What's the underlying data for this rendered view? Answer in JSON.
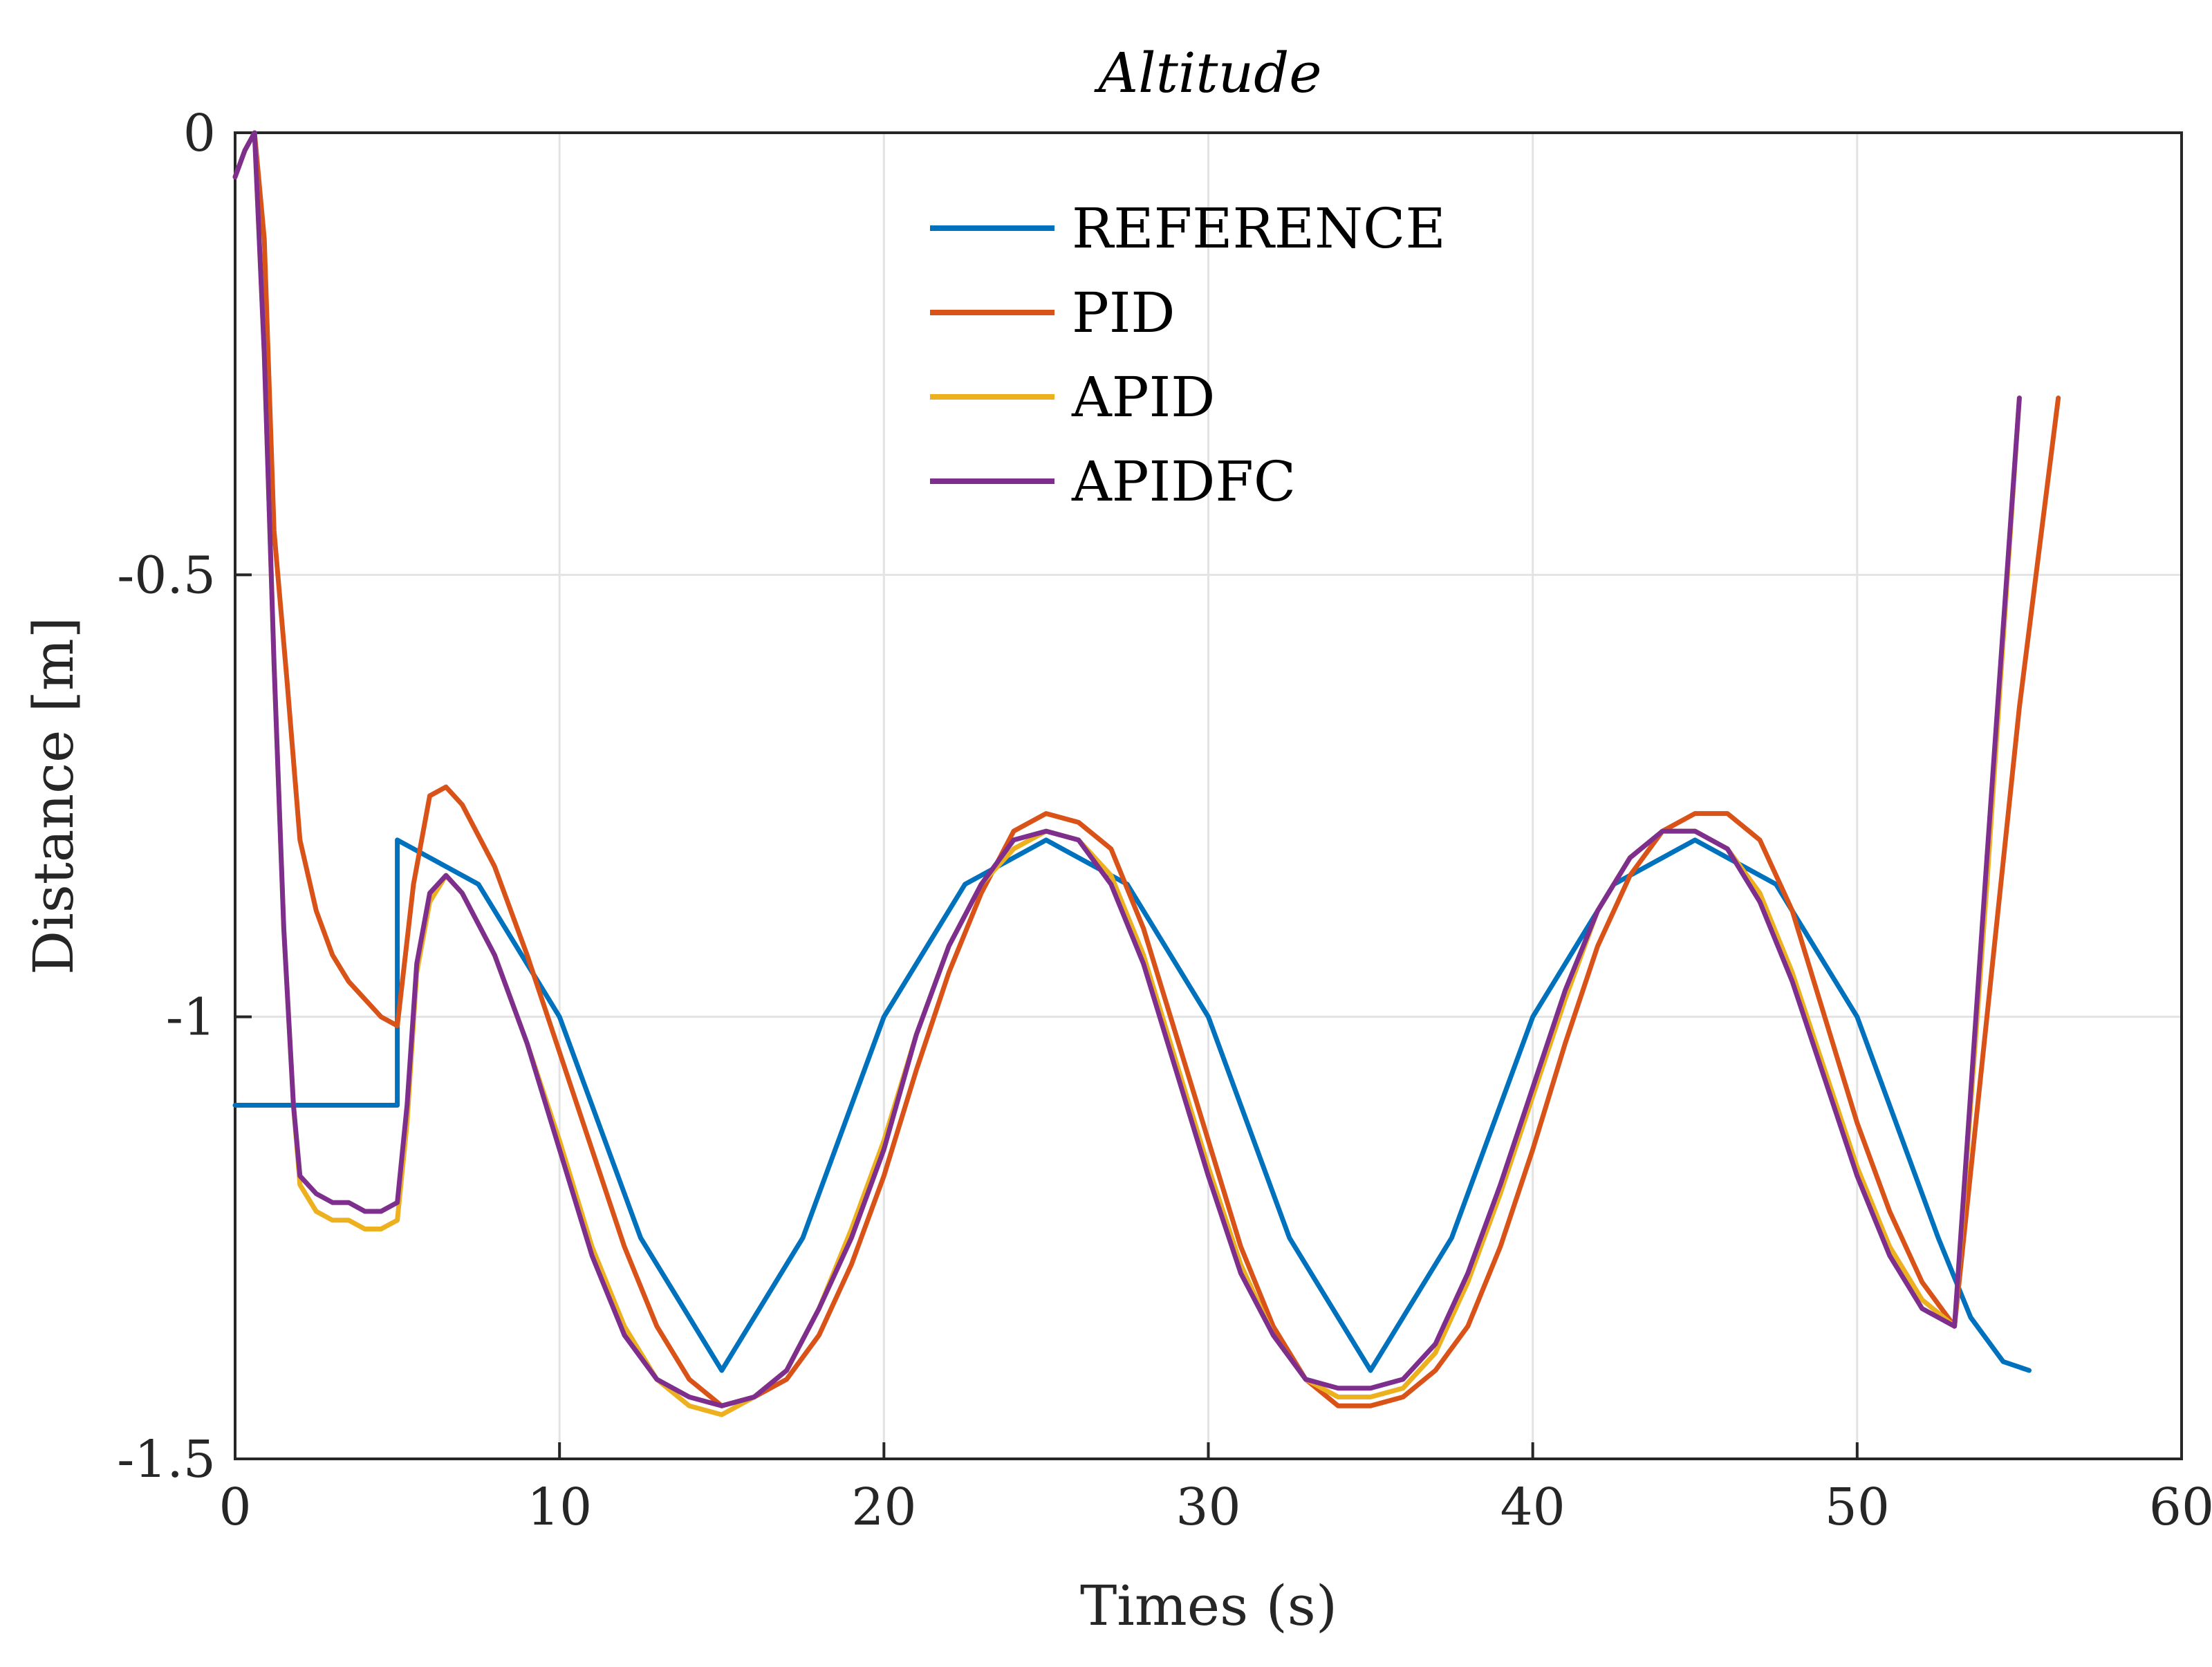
{
  "chart_data": {
    "type": "line",
    "title": "Altitude",
    "xlabel": "Times (s)",
    "ylabel": "Distance [m]",
    "xlim": [
      0,
      60
    ],
    "ylim": [
      -1.5,
      0
    ],
    "x_ticks": [
      0,
      10,
      20,
      30,
      40,
      50,
      60
    ],
    "x_tick_labels": [
      "0",
      "10",
      "20",
      "30",
      "40",
      "50",
      "60"
    ],
    "y_ticks": [
      0,
      -0.5,
      -1,
      -1.5
    ],
    "y_tick_labels": [
      "0",
      "-0.5",
      "-1",
      "-1.5"
    ],
    "grid": true,
    "legend_position": "top-center",
    "series": [
      {
        "name": "REFERENCE",
        "color": "#0072bd",
        "x": [
          0,
          5,
          5,
          7.5,
          10,
          12.5,
          15,
          17.5,
          20,
          22.5,
          25,
          27.5,
          30,
          32.5,
          35,
          37.5,
          40,
          42.5,
          45,
          47.5,
          50,
          52.5,
          53.5,
          54.5,
          55.3
        ],
        "y": [
          -1.1,
          -1.1,
          -0.8,
          -0.85,
          -1.0,
          -1.25,
          -1.4,
          -1.25,
          -1.0,
          -0.85,
          -0.8,
          -0.85,
          -1.0,
          -1.25,
          -1.4,
          -1.25,
          -1.0,
          -0.85,
          -0.8,
          -0.85,
          -1.0,
          -1.25,
          -1.34,
          -1.39,
          -1.4
        ]
      },
      {
        "name": "PID",
        "color": "#d95319",
        "x": [
          0,
          0.3,
          0.6,
          0.9,
          1.2,
          1.6,
          2.0,
          2.5,
          3.0,
          3.5,
          4.0,
          4.5,
          5.0,
          5.5,
          6.0,
          6.5,
          7.0,
          8.0,
          9.0,
          10.0,
          11.0,
          12.0,
          13.0,
          14.0,
          15.0,
          16.0,
          17.0,
          18.0,
          19.0,
          20.0,
          21.0,
          22.0,
          23.0,
          24.0,
          25.0,
          26.0,
          27.0,
          28.0,
          29.0,
          30.0,
          31.0,
          32.0,
          33.0,
          34.0,
          35.0,
          36.0,
          37.0,
          38.0,
          39.0,
          40.0,
          41.0,
          42.0,
          43.0,
          44.0,
          45.0,
          46.0,
          47.0,
          48.0,
          49.0,
          50.0,
          51.0,
          52.0,
          53.0,
          54.0,
          55.0,
          56.2
        ],
        "y": [
          -0.05,
          -0.02,
          0.0,
          -0.12,
          -0.45,
          -0.62,
          -0.8,
          -0.88,
          -0.93,
          -0.96,
          -0.98,
          -1.0,
          -1.01,
          -0.85,
          -0.75,
          -0.74,
          -0.76,
          -0.83,
          -0.93,
          -1.04,
          -1.15,
          -1.26,
          -1.35,
          -1.41,
          -1.44,
          -1.43,
          -1.41,
          -1.36,
          -1.28,
          -1.18,
          -1.06,
          -0.95,
          -0.86,
          -0.79,
          -0.77,
          -0.78,
          -0.81,
          -0.9,
          -1.02,
          -1.14,
          -1.26,
          -1.35,
          -1.41,
          -1.44,
          -1.44,
          -1.43,
          -1.4,
          -1.35,
          -1.26,
          -1.15,
          -1.03,
          -0.92,
          -0.84,
          -0.79,
          -0.77,
          -0.77,
          -0.8,
          -0.88,
          -1.0,
          -1.12,
          -1.22,
          -1.3,
          -1.35,
          -1.0,
          -0.65,
          -0.3
        ]
      },
      {
        "name": "APID",
        "color": "#edb120",
        "x": [
          0,
          0.3,
          0.6,
          0.9,
          1.2,
          1.5,
          1.8,
          2.0,
          2.5,
          3.0,
          3.5,
          4.0,
          4.5,
          5.0,
          5.3,
          5.6,
          6.0,
          6.5,
          7.0,
          8.0,
          9.0,
          10.0,
          11.0,
          12.0,
          13.0,
          14.0,
          15.0,
          16.0,
          17.0,
          18.0,
          19.0,
          20.0,
          21.0,
          22.0,
          23.0,
          24.0,
          25.0,
          26.0,
          27.0,
          28.0,
          29.0,
          30.0,
          31.0,
          32.0,
          33.0,
          34.0,
          35.0,
          36.0,
          37.0,
          38.0,
          39.0,
          40.0,
          41.0,
          42.0,
          43.0,
          44.0,
          45.0,
          46.0,
          47.0,
          48.0,
          49.0,
          50.0,
          51.0,
          52.0,
          53.0,
          54.0,
          55.0
        ],
        "y": [
          -0.05,
          -0.02,
          0.0,
          -0.25,
          -0.6,
          -0.9,
          -1.1,
          -1.19,
          -1.22,
          -1.23,
          -1.23,
          -1.24,
          -1.24,
          -1.23,
          -1.12,
          -0.95,
          -0.87,
          -0.84,
          -0.86,
          -0.93,
          -1.03,
          -1.14,
          -1.26,
          -1.35,
          -1.41,
          -1.44,
          -1.45,
          -1.43,
          -1.4,
          -1.33,
          -1.24,
          -1.14,
          -1.02,
          -0.92,
          -0.85,
          -0.81,
          -0.79,
          -0.8,
          -0.84,
          -0.93,
          -1.05,
          -1.17,
          -1.28,
          -1.36,
          -1.41,
          -1.43,
          -1.43,
          -1.42,
          -1.38,
          -1.3,
          -1.2,
          -1.09,
          -0.98,
          -0.88,
          -0.82,
          -0.79,
          -0.79,
          -0.81,
          -0.86,
          -0.95,
          -1.06,
          -1.17,
          -1.26,
          -1.32,
          -1.35,
          -0.85,
          -0.3
        ]
      },
      {
        "name": "APIDFC",
        "color": "#7e2f8e",
        "x": [
          0,
          0.3,
          0.6,
          0.9,
          1.2,
          1.5,
          1.8,
          2.0,
          2.5,
          3.0,
          3.5,
          4.0,
          4.5,
          5.0,
          5.3,
          5.6,
          6.0,
          6.5,
          7.0,
          8.0,
          9.0,
          10.0,
          11.0,
          12.0,
          13.0,
          14.0,
          15.0,
          16.0,
          17.0,
          18.0,
          19.0,
          20.0,
          21.0,
          22.0,
          23.0,
          24.0,
          25.0,
          26.0,
          27.0,
          28.0,
          29.0,
          30.0,
          31.0,
          32.0,
          33.0,
          34.0,
          35.0,
          36.0,
          37.0,
          38.0,
          39.0,
          40.0,
          41.0,
          42.0,
          43.0,
          44.0,
          45.0,
          46.0,
          47.0,
          48.0,
          49.0,
          50.0,
          51.0,
          52.0,
          53.0,
          54.0,
          55.0
        ],
        "y": [
          -0.05,
          -0.02,
          0.0,
          -0.25,
          -0.6,
          -0.9,
          -1.1,
          -1.18,
          -1.2,
          -1.21,
          -1.21,
          -1.22,
          -1.22,
          -1.21,
          -1.1,
          -0.94,
          -0.86,
          -0.84,
          -0.86,
          -0.93,
          -1.03,
          -1.15,
          -1.27,
          -1.36,
          -1.41,
          -1.43,
          -1.44,
          -1.43,
          -1.4,
          -1.33,
          -1.25,
          -1.15,
          -1.02,
          -0.92,
          -0.85,
          -0.8,
          -0.79,
          -0.8,
          -0.85,
          -0.94,
          -1.06,
          -1.18,
          -1.29,
          -1.36,
          -1.41,
          -1.42,
          -1.42,
          -1.41,
          -1.37,
          -1.29,
          -1.19,
          -1.08,
          -0.97,
          -0.88,
          -0.82,
          -0.79,
          -0.79,
          -0.81,
          -0.87,
          -0.96,
          -1.07,
          -1.18,
          -1.27,
          -1.33,
          -1.35,
          -0.82,
          -0.3
        ]
      }
    ]
  }
}
